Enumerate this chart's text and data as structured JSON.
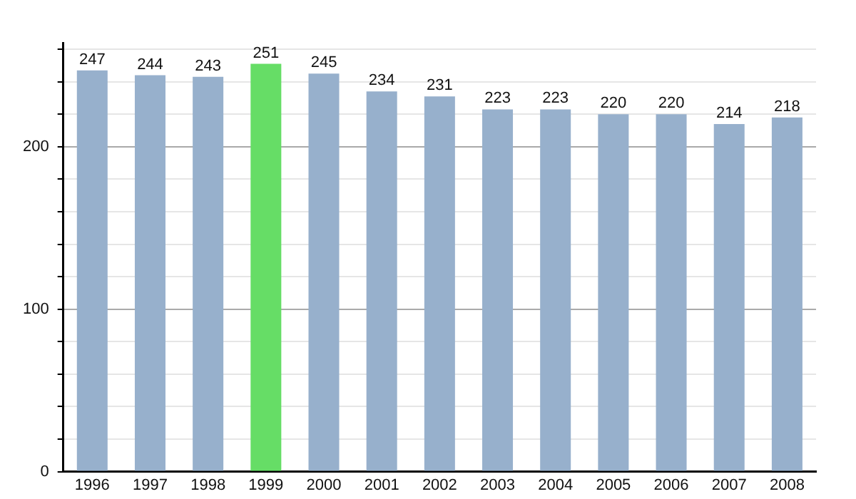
{
  "chart_data": {
    "type": "bar",
    "categories": [
      "1996",
      "1997",
      "1998",
      "1999",
      "2000",
      "2001",
      "2002",
      "2003",
      "2004",
      "2005",
      "2006",
      "2007",
      "2008"
    ],
    "values": [
      247,
      244,
      243,
      251,
      245,
      234,
      231,
      223,
      223,
      220,
      220,
      214,
      218
    ],
    "colors": [
      "#97b0cc",
      "#97b0cc",
      "#97b0cc",
      "#66dd66",
      "#97b0cc",
      "#97b0cc",
      "#97b0cc",
      "#97b0cc",
      "#97b0cc",
      "#97b0cc",
      "#97b0cc",
      "#97b0cc",
      "#97b0cc"
    ],
    "ylim": [
      0,
      264
    ],
    "yticks": [
      0,
      {
        "value": 20,
        "label": null
      },
      {
        "value": 40,
        "label": null
      },
      {
        "value": 60,
        "label": null
      },
      {
        "value": 80,
        "label": null
      },
      100,
      {
        "value": 120,
        "label": null
      },
      {
        "value": 140,
        "label": null
      },
      {
        "value": 160,
        "label": null
      },
      {
        "value": 180,
        "label": null
      },
      200,
      {
        "value": 220,
        "label": null
      },
      {
        "value": 240,
        "label": null
      },
      {
        "value": 260,
        "label": null
      }
    ],
    "grid": "y",
    "data_labels": true,
    "legend": false
  }
}
